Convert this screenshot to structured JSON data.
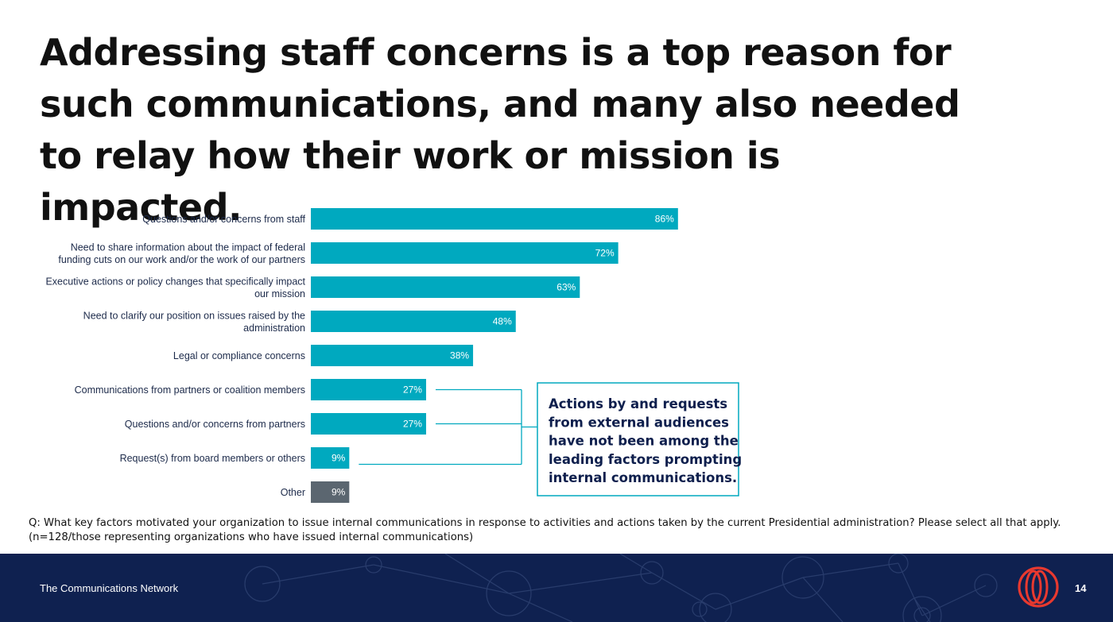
{
  "slide": {
    "title": "Addressing staff concerns is a top reason for such communications, and many also needed to relay how their work or mission is impacted.",
    "footnote_q": "Q: What key factors motivated your organization to issue internal communications in response to activities and actions taken by the current Presidential administration? Please select all that apply.",
    "footnote_n": "(n=128/those representing organizations who have issued internal communications)",
    "callout": {
      "lines": [
        "Actions by and requests",
        "from external audiences",
        "have not been among the",
        "leading factors prompting",
        "internal communications."
      ]
    },
    "footer": {
      "brand": "The Communications Network",
      "page": "14",
      "logo_icon": "communications-network-logo-icon"
    },
    "colors": {
      "bar": "#00a9bf",
      "bar_other": "#5b6670",
      "footer_bg": "#0f2150",
      "callout_border": "#00a9bf",
      "logo": "#e8392f"
    }
  },
  "chart_data": {
    "type": "bar",
    "orientation": "horizontal",
    "categories": [
      [
        "Questions and/or concerns from staff"
      ],
      [
        "Need to share information about the impact of federal",
        "funding cuts on our work and/or the work of our partners"
      ],
      [
        "Executive actions or policy changes that specifically impact",
        "our mission"
      ],
      [
        "Need to clarify our position on issues raised by the",
        "administration"
      ],
      [
        "Legal or compliance concerns"
      ],
      [
        "Communications from partners or coalition members"
      ],
      [
        "Questions and/or concerns from partners"
      ],
      [
        "Request(s) from board members or others"
      ],
      [
        "Other"
      ]
    ],
    "values": [
      86,
      72,
      63,
      48,
      38,
      27,
      27,
      9,
      9
    ],
    "value_labels": [
      "86%",
      "72%",
      "63%",
      "48%",
      "38%",
      "27%",
      "27%",
      "9%",
      "9%"
    ],
    "highlight_rows": [
      5,
      6,
      7
    ],
    "xlim": [
      0,
      100
    ],
    "grid": false,
    "legend": "none"
  }
}
